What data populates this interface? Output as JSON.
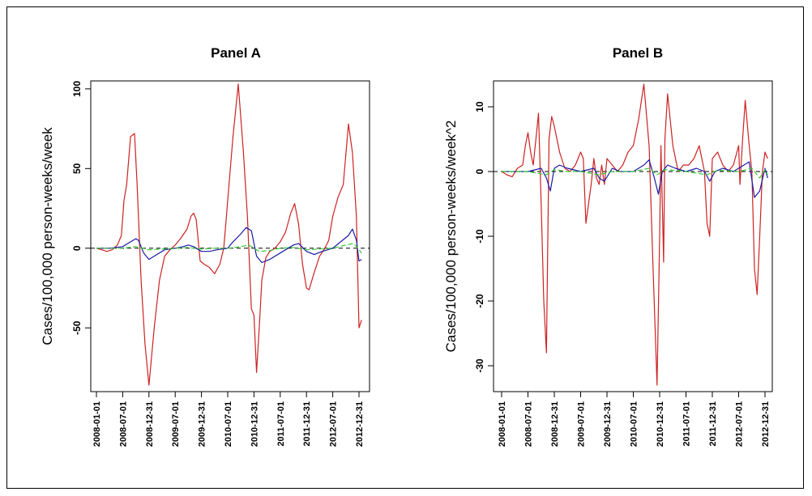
{
  "chart_data": [
    {
      "type": "line",
      "title": "Panel A",
      "ylabel": "Cases/100,000 person-weeks/week",
      "xlabel": "",
      "x_tick_labels": [
        "2008-01-01",
        "2008-07-01",
        "2008-12-31",
        "2009-07-01",
        "2009-12-31",
        "2010-07-01",
        "2010-12-31",
        "2011-07-01",
        "2011-12-31",
        "2012-07-01",
        "2012-12-31"
      ],
      "y_ticks": [
        -50,
        0,
        50,
        100
      ],
      "ylim": [
        -90,
        105
      ],
      "reference_line": 0,
      "series": [
        {
          "color": "#cc2222",
          "x": [
            0,
            0.2,
            0.4,
            0.6,
            0.8,
            0.95,
            1.05,
            1.15,
            1.3,
            1.45,
            1.55,
            1.7,
            1.85,
            2.0,
            2.2,
            2.4,
            2.6,
            2.8,
            3.0,
            3.2,
            3.45,
            3.6,
            3.7,
            3.8,
            3.95,
            4.1,
            4.3,
            4.5,
            4.7,
            4.85,
            4.95,
            5.05,
            5.2,
            5.4,
            5.6,
            5.75,
            5.9,
            6.0,
            6.1,
            6.2,
            6.3,
            6.45,
            6.6,
            6.8,
            7.0,
            7.2,
            7.4,
            7.55,
            7.7,
            7.85,
            8.0,
            8.1,
            8.3,
            8.5,
            8.7,
            8.85,
            9.0,
            9.2,
            9.4,
            9.6,
            9.75,
            9.9,
            10.0,
            10.1
          ],
          "y": [
            0,
            -1,
            -2,
            -1,
            2,
            8,
            30,
            40,
            70,
            72,
            40,
            -20,
            -60,
            -86,
            -50,
            -20,
            -5,
            -1,
            2,
            6,
            12,
            20,
            22,
            18,
            -8,
            -10,
            -12,
            -16,
            -10,
            0,
            20,
            40,
            70,
            103,
            60,
            20,
            -38,
            -42,
            -78,
            -50,
            -20,
            -6,
            -2,
            0,
            4,
            10,
            22,
            28,
            15,
            -10,
            -25,
            -26,
            -15,
            -5,
            0,
            5,
            20,
            32,
            40,
            78,
            60,
            20,
            -50,
            -45
          ]
        },
        {
          "color": "#1a1aa6",
          "x": [
            0,
            0.5,
            1.0,
            1.3,
            1.5,
            1.6,
            1.8,
            2.0,
            2.3,
            2.6,
            3.0,
            3.3,
            3.5,
            3.7,
            4.0,
            4.3,
            4.6,
            5.0,
            5.2,
            5.5,
            5.7,
            5.9,
            6.1,
            6.3,
            6.6,
            7.0,
            7.3,
            7.5,
            7.7,
            8.0,
            8.3,
            8.6,
            9.0,
            9.3,
            9.6,
            9.75,
            9.9,
            10.0,
            10.1
          ],
          "y": [
            0,
            0,
            1,
            4,
            6,
            5,
            -3,
            -7,
            -4,
            -1,
            0,
            1,
            2,
            1,
            -2,
            -2,
            -1,
            0,
            4,
            9,
            13,
            11,
            -5,
            -9,
            -7,
            -3,
            0,
            2,
            3,
            -2,
            -4,
            -2,
            0,
            4,
            8,
            12,
            5,
            -8,
            -7
          ]
        },
        {
          "color": "#33cc33",
          "dash": true,
          "x": [
            0,
            1.0,
            1.5,
            2.0,
            2.5,
            3.0,
            3.5,
            4.0,
            4.5,
            5.0,
            5.5,
            5.8,
            6.2,
            6.6,
            7.0,
            7.5,
            8.0,
            8.5,
            9.0,
            9.5,
            9.8,
            10.0,
            10.1
          ],
          "y": [
            0,
            0,
            1,
            -1,
            -0.5,
            0,
            0.5,
            -0.5,
            0,
            0,
            1,
            2,
            -2,
            -1.5,
            0,
            0.5,
            -1,
            -0.5,
            0,
            2,
            3,
            -1,
            -3
          ]
        }
      ]
    },
    {
      "type": "line",
      "title": "Panel B",
      "ylabel": "Cases/100,000 person-weeks/week^2",
      "xlabel": "",
      "x_tick_labels": [
        "2008-01-01",
        "2008-07-01",
        "2008-12-31",
        "2009-07-01",
        "2009-12-31",
        "2010-07-01",
        "2010-12-31",
        "2011-07-01",
        "2011-12-31",
        "2012-07-01",
        "2012-12-31"
      ],
      "y_ticks": [
        -30,
        -20,
        -10,
        0,
        10
      ],
      "ylim": [
        -34,
        14
      ],
      "reference_line": 0,
      "series": [
        {
          "color": "#cc2222",
          "x": [
            0,
            0.2,
            0.4,
            0.6,
            0.8,
            0.9,
            1.0,
            1.1,
            1.2,
            1.3,
            1.4,
            1.5,
            1.6,
            1.7,
            1.8,
            1.9,
            2.0,
            2.2,
            2.4,
            2.6,
            2.8,
            3.0,
            3.1,
            3.2,
            3.4,
            3.5,
            3.6,
            3.7,
            3.8,
            3.9,
            4.0,
            4.2,
            4.4,
            4.6,
            4.8,
            5.0,
            5.2,
            5.4,
            5.6,
            5.75,
            5.9,
            6.0,
            6.05,
            6.1,
            6.15,
            6.2,
            6.3,
            6.5,
            6.7,
            6.9,
            7.1,
            7.3,
            7.5,
            7.7,
            7.8,
            7.9,
            8.0,
            8.2,
            8.4,
            8.6,
            8.8,
            9.0,
            9.05,
            9.15,
            9.25,
            9.4,
            9.5,
            9.6,
            9.7,
            9.8,
            9.9,
            10.0,
            10.1
          ],
          "y": [
            0,
            -0.5,
            -0.8,
            0.5,
            1,
            4,
            6,
            3,
            1,
            5,
            9,
            -5,
            -20,
            -28,
            5,
            8.5,
            7,
            3,
            0.5,
            0,
            1,
            3,
            2,
            -8,
            -2,
            2,
            -1,
            -2,
            1,
            -2,
            2,
            1,
            0,
            1,
            3,
            4,
            8,
            13.5,
            4,
            -15,
            -33,
            -10,
            4,
            -5,
            -14,
            5,
            12,
            4,
            0,
            1,
            1,
            2,
            4,
            0,
            -8,
            -10,
            2,
            3,
            1,
            0,
            1,
            4,
            -2,
            5,
            11,
            4,
            0,
            -15,
            -19,
            -10,
            0,
            3,
            2
          ]
        },
        {
          "color": "#1a1aa6",
          "x": [
            0,
            1.0,
            1.5,
            1.7,
            1.85,
            2.0,
            2.2,
            2.5,
            3.0,
            3.5,
            3.7,
            3.9,
            4.2,
            4.5,
            5.0,
            5.4,
            5.6,
            5.8,
            5.95,
            6.1,
            6.3,
            6.6,
            7.0,
            7.4,
            7.7,
            7.9,
            8.1,
            8.4,
            8.8,
            9.2,
            9.4,
            9.6,
            9.8,
            10.0,
            10.1
          ],
          "y": [
            0,
            0,
            0.5,
            -1,
            -3,
            0.5,
            1,
            0.5,
            0,
            0.5,
            -1,
            -1.5,
            0.5,
            0,
            0,
            1,
            1.8,
            -1,
            -3.5,
            0,
            1,
            0.5,
            0,
            0.5,
            0,
            -1.5,
            0,
            0.5,
            0,
            1,
            1.5,
            -4,
            -3,
            0.5,
            -1
          ]
        },
        {
          "color": "#33cc33",
          "dash": true,
          "x": [
            0,
            1.0,
            1.7,
            2.0,
            2.5,
            3.0,
            3.7,
            4.2,
            5.0,
            5.6,
            5.9,
            6.2,
            7.0,
            7.8,
            8.2,
            9.0,
            9.5,
            9.8,
            10.0,
            10.1
          ],
          "y": [
            0,
            0,
            -0.5,
            0.3,
            0,
            0,
            -0.5,
            0,
            0,
            0.5,
            -0.5,
            0.3,
            0,
            -0.5,
            0.2,
            0,
            0.5,
            -1,
            0.3,
            -0.5
          ]
        }
      ]
    }
  ]
}
